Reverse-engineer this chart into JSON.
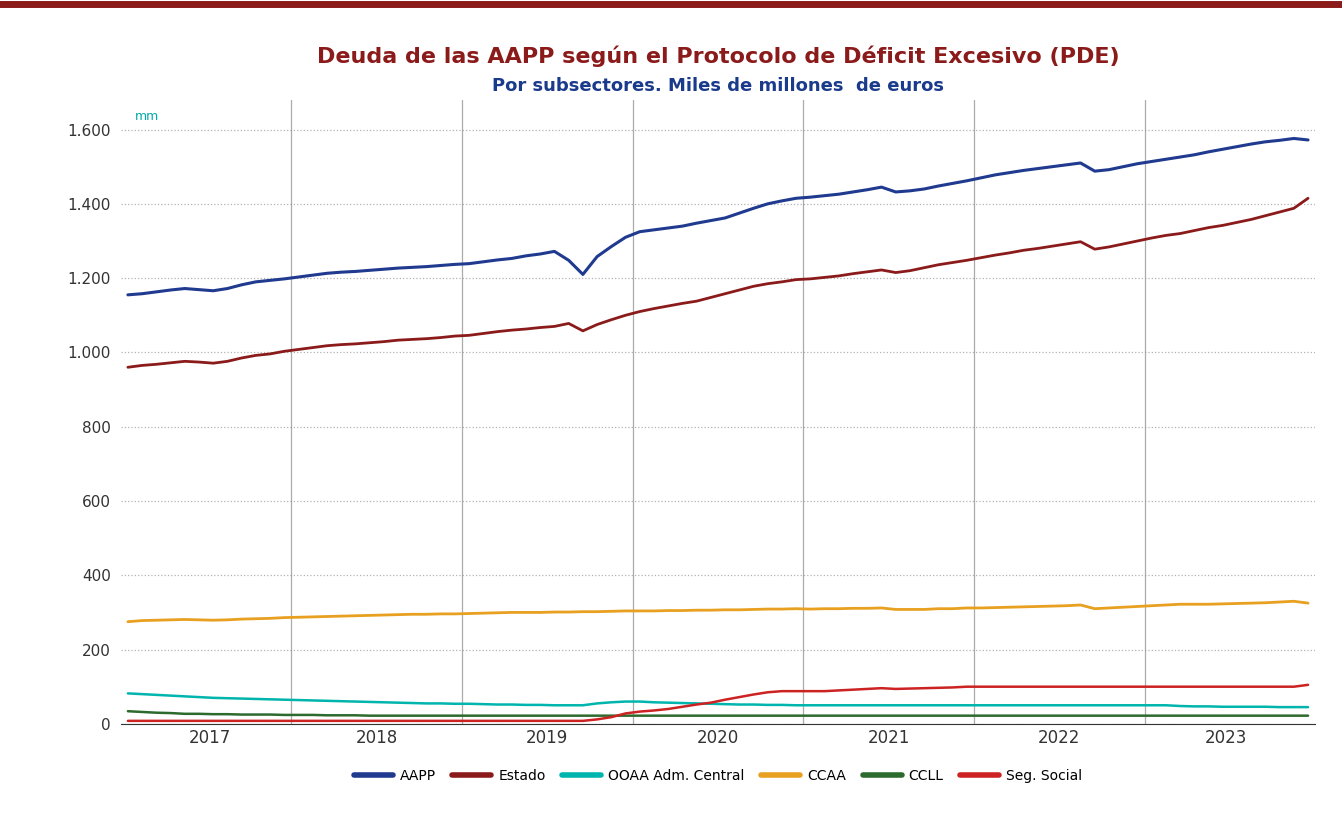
{
  "title": "Deuda de las AAPP según el Protocolo de Déficit Excesivo (PDE)",
  "subtitle": "Por subsectores. Miles de millones  de euros",
  "ylabel_note": "mm",
  "ylim": [
    0,
    1680
  ],
  "yticks": [
    0,
    200,
    400,
    600,
    800,
    1000,
    1200,
    1400,
    1600
  ],
  "ytick_labels": [
    "0",
    "200",
    "400",
    "600",
    "800",
    "1.000",
    "1.200",
    "1.400",
    "1.600"
  ],
  "title_color": "#8B1A1A",
  "subtitle_color": "#1A3A8B",
  "background_color": "#FFFFFF",
  "top_border_color": "#8B1A1A",
  "vline_color": "#888888",
  "grid_color": "#AAAAAA",
  "series": {
    "AAPP": {
      "color": "#1F3A8F",
      "linewidth": 2.2,
      "values": [
        1155,
        1158,
        1163,
        1168,
        1172,
        1169,
        1166,
        1172,
        1182,
        1190,
        1194,
        1198,
        1203,
        1208,
        1213,
        1216,
        1218,
        1221,
        1224,
        1227,
        1229,
        1231,
        1234,
        1237,
        1239,
        1244,
        1249,
        1253,
        1260,
        1265,
        1272,
        1248,
        1210,
        1258,
        1285,
        1310,
        1325,
        1330,
        1335,
        1340,
        1348,
        1355,
        1362,
        1375,
        1388,
        1400,
        1408,
        1415,
        1418,
        1422,
        1426,
        1432,
        1438,
        1445,
        1432,
        1435,
        1440,
        1448,
        1455,
        1462,
        1470,
        1478,
        1484,
        1490,
        1495,
        1500,
        1505,
        1510,
        1488,
        1492,
        1500,
        1508,
        1514,
        1520,
        1526,
        1532,
        1540,
        1547,
        1554,
        1561,
        1567,
        1571,
        1576,
        1572
      ]
    },
    "Estado": {
      "color": "#8B1A1A",
      "linewidth": 2.0,
      "values": [
        960,
        965,
        968,
        972,
        976,
        974,
        971,
        976,
        985,
        992,
        996,
        1003,
        1008,
        1013,
        1018,
        1021,
        1023,
        1026,
        1029,
        1033,
        1035,
        1037,
        1040,
        1044,
        1046,
        1051,
        1056,
        1060,
        1063,
        1067,
        1070,
        1078,
        1058,
        1075,
        1088,
        1100,
        1110,
        1118,
        1125,
        1132,
        1138,
        1148,
        1158,
        1168,
        1178,
        1185,
        1190,
        1196,
        1198,
        1202,
        1206,
        1212,
        1217,
        1222,
        1215,
        1220,
        1228,
        1236,
        1242,
        1248,
        1255,
        1262,
        1268,
        1275,
        1280,
        1286,
        1292,
        1298,
        1278,
        1284,
        1292,
        1300,
        1308,
        1315,
        1320,
        1328,
        1336,
        1342,
        1350,
        1358,
        1368,
        1378,
        1388,
        1415
      ]
    },
    "OOAA Adm. Central": {
      "color": "#00B5AD",
      "linewidth": 1.8,
      "values": [
        82,
        80,
        78,
        76,
        74,
        72,
        70,
        69,
        68,
        67,
        66,
        65,
        64,
        63,
        62,
        61,
        60,
        59,
        58,
        57,
        56,
        55,
        55,
        54,
        54,
        53,
        52,
        52,
        51,
        51,
        50,
        50,
        50,
        55,
        58,
        60,
        60,
        58,
        57,
        56,
        55,
        54,
        53,
        52,
        52,
        51,
        51,
        50,
        50,
        50,
        50,
        50,
        50,
        50,
        50,
        50,
        50,
        50,
        50,
        50,
        50,
        50,
        50,
        50,
        50,
        50,
        50,
        50,
        50,
        50,
        50,
        50,
        50,
        50,
        48,
        47,
        47,
        46,
        46,
        46,
        46,
        45,
        45,
        45
      ]
    },
    "CCAA": {
      "color": "#E8A020",
      "linewidth": 2.0,
      "values": [
        275,
        278,
        279,
        280,
        281,
        280,
        279,
        280,
        282,
        283,
        284,
        286,
        287,
        288,
        289,
        290,
        291,
        292,
        293,
        294,
        295,
        295,
        296,
        296,
        297,
        298,
        299,
        300,
        300,
        300,
        301,
        301,
        302,
        302,
        303,
        304,
        304,
        304,
        305,
        305,
        306,
        306,
        307,
        307,
        308,
        309,
        309,
        310,
        309,
        310,
        310,
        311,
        311,
        312,
        308,
        308,
        308,
        310,
        310,
        312,
        312,
        313,
        314,
        315,
        316,
        317,
        318,
        320,
        310,
        312,
        314,
        316,
        318,
        320,
        322,
        322,
        322,
        323,
        324,
        325,
        326,
        328,
        330,
        325
      ]
    },
    "CCLL": {
      "color": "#2D6A2D",
      "linewidth": 1.8,
      "values": [
        34,
        32,
        30,
        29,
        27,
        27,
        26,
        26,
        25,
        25,
        25,
        24,
        24,
        24,
        23,
        23,
        23,
        22,
        22,
        22,
        22,
        22,
        22,
        22,
        22,
        22,
        22,
        22,
        22,
        22,
        22,
        22,
        22,
        22,
        22,
        22,
        22,
        22,
        22,
        22,
        22,
        22,
        22,
        22,
        22,
        22,
        22,
        22,
        22,
        22,
        22,
        22,
        22,
        22,
        22,
        22,
        22,
        22,
        22,
        22,
        22,
        22,
        22,
        22,
        22,
        22,
        22,
        22,
        22,
        22,
        22,
        22,
        22,
        22,
        22,
        22,
        22,
        22,
        22,
        22,
        22,
        22,
        22,
        22
      ]
    },
    "Seg. Social": {
      "color": "#CC2222",
      "linewidth": 1.8,
      "values": [
        8,
        8,
        8,
        8,
        8,
        8,
        8,
        8,
        8,
        8,
        8,
        8,
        8,
        8,
        8,
        8,
        8,
        8,
        8,
        8,
        8,
        8,
        8,
        8,
        8,
        8,
        8,
        8,
        8,
        8,
        8,
        8,
        8,
        12,
        18,
        28,
        33,
        36,
        40,
        46,
        52,
        57,
        65,
        72,
        79,
        85,
        88,
        88,
        88,
        88,
        90,
        92,
        94,
        96,
        94,
        95,
        96,
        97,
        98,
        100,
        100,
        100,
        100,
        100,
        100,
        100,
        100,
        100,
        100,
        100,
        100,
        100,
        100,
        100,
        100,
        100,
        100,
        100,
        100,
        100,
        100,
        100,
        100,
        105
      ]
    }
  },
  "n_months": 84,
  "months_per_year": 12,
  "start_year": 2016,
  "year_labels": [
    "2017",
    "2018",
    "2019",
    "2020",
    "2021",
    "2022",
    "2023"
  ],
  "vline_months": [
    12,
    24,
    36,
    48,
    60,
    72
  ],
  "legend_order": [
    "AAPP",
    "Estado",
    "OOAA Adm. Central",
    "CCAA",
    "CCLL",
    "Seg. Social"
  ]
}
